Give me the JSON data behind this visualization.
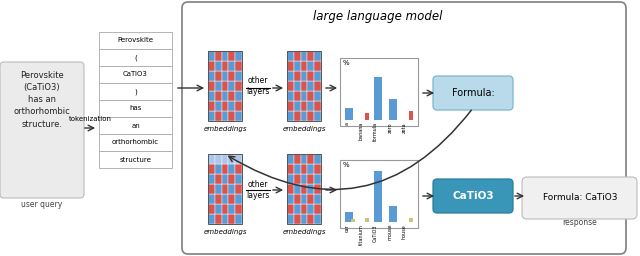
{
  "fig_width": 6.4,
  "fig_height": 2.56,
  "dpi": 100,
  "bg_color": "#ffffff",
  "title": "large language model",
  "bar1_categories": [
    "a",
    "banana",
    "formula",
    "zero",
    "zeta"
  ],
  "bar1_blue": [
    0.22,
    0.0,
    0.8,
    0.38,
    0.0
  ],
  "bar1_red": [
    0.0,
    0.13,
    0.0,
    0.0,
    0.16
  ],
  "bar2_categories": [
    "car",
    "titanium",
    "CaTiO3",
    "mouse",
    "house"
  ],
  "bar2_blue": [
    0.18,
    0.0,
    0.95,
    0.3,
    0.0
  ],
  "bar2_yellow": [
    0.05,
    0.08,
    0.0,
    0.0,
    0.08
  ],
  "embed_red": "#d9534f",
  "embed_blue": "#5b9bd5",
  "embed_light": "#aec6e8",
  "bar_blue": "#5b9bd5",
  "bar_blue2": "#2e75b6",
  "bar_red": "#d9534f",
  "bar_yellow": "#d4c07a",
  "arrow_color": "#333333",
  "output1_text": "Formula:",
  "output1_bg": "#b8daea",
  "output1_border": "#7ab8cc",
  "output2_text": "CaTiO3",
  "output2_bg": "#3a96b8",
  "output2_border": "#2a7fa0",
  "response_text": "Formula: CaTiO3",
  "response_label": "response",
  "response_bg": "#f0f0f0",
  "llm_border": "#888888",
  "token_border": "#aaaaaa",
  "left_bg": "#ebebeb"
}
